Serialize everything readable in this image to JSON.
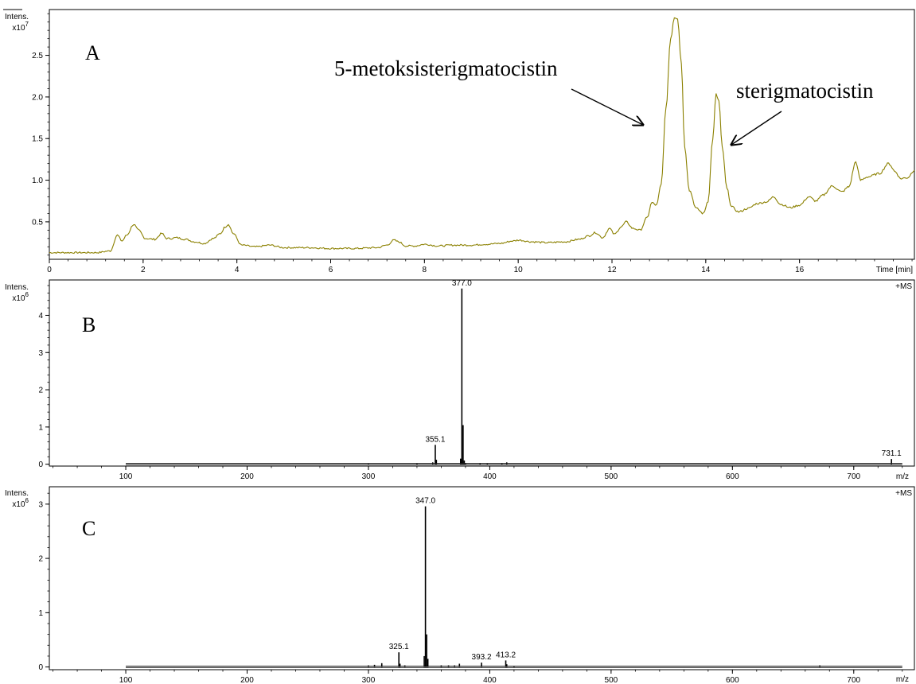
{
  "chart_data": [
    {
      "type": "line",
      "panel_label": "A",
      "y_axis_label": "Intens.",
      "y_axis_multiplier_base": "x10",
      "y_axis_multiplier_exp": "7",
      "x_axis_label": "Time [min]",
      "xlim": [
        0,
        18.45
      ],
      "ylim": [
        0.05,
        3.05
      ],
      "x_ticks": [
        "0",
        "2",
        "4",
        "6",
        "8",
        "10",
        "12",
        "14",
        "16"
      ],
      "y_ticks": [
        "0.5",
        "1.0",
        "1.5",
        "2.0",
        "2.5"
      ],
      "line_color": "#8b8000",
      "annotations": [
        {
          "text": "5-metoksisterigmatocistin",
          "x": 13.4,
          "y": 2.96
        },
        {
          "text": "sterigmatocistin",
          "x": 14.25,
          "y": 2.03
        }
      ],
      "series": [
        {
          "x": [
            0,
            0.5,
            1.0,
            1.3,
            1.45,
            1.55,
            1.65,
            1.8,
            1.9,
            2.05,
            2.25,
            2.4,
            2.5,
            2.6,
            2.7,
            2.9,
            3.1,
            3.3,
            3.5,
            3.65,
            3.75,
            3.82,
            3.92,
            4.1,
            4.4,
            4.7,
            5.0,
            5.5,
            6.0,
            6.5,
            7.0,
            7.2,
            7.35,
            7.45,
            7.6,
            7.8,
            8.0,
            8.3,
            8.6,
            9.0,
            9.3,
            9.6,
            9.9,
            10.0,
            10.3,
            10.6,
            11.0,
            11.3,
            11.5,
            11.65,
            11.8,
            11.95,
            12.05,
            12.2,
            12.3,
            12.45,
            12.6,
            12.75,
            12.85,
            12.95,
            13.05,
            13.15,
            13.25,
            13.33,
            13.4,
            13.48,
            13.55,
            13.65,
            13.8,
            13.95,
            14.05,
            14.15,
            14.22,
            14.28,
            14.35,
            14.45,
            14.55,
            14.7,
            14.9,
            15.1,
            15.3,
            15.45,
            15.6,
            15.8,
            16.0,
            16.2,
            16.35,
            16.5,
            16.7,
            16.9,
            17.05,
            17.2,
            17.3,
            17.45,
            17.7,
            17.9,
            18.05,
            18.15,
            18.3,
            18.45
          ],
          "y": [
            0.13,
            0.13,
            0.13,
            0.15,
            0.34,
            0.27,
            0.34,
            0.47,
            0.4,
            0.3,
            0.29,
            0.36,
            0.3,
            0.3,
            0.31,
            0.29,
            0.26,
            0.24,
            0.3,
            0.36,
            0.44,
            0.47,
            0.36,
            0.22,
            0.2,
            0.22,
            0.19,
            0.19,
            0.18,
            0.18,
            0.19,
            0.22,
            0.28,
            0.26,
            0.21,
            0.21,
            0.23,
            0.21,
            0.22,
            0.22,
            0.23,
            0.24,
            0.27,
            0.28,
            0.26,
            0.25,
            0.26,
            0.29,
            0.33,
            0.37,
            0.31,
            0.42,
            0.35,
            0.44,
            0.5,
            0.42,
            0.4,
            0.55,
            0.73,
            0.7,
            0.95,
            1.85,
            2.7,
            2.96,
            2.95,
            2.4,
            1.4,
            0.88,
            0.66,
            0.6,
            0.75,
            1.5,
            2.03,
            1.95,
            1.4,
            0.9,
            0.68,
            0.62,
            0.66,
            0.72,
            0.74,
            0.8,
            0.71,
            0.67,
            0.7,
            0.8,
            0.75,
            0.82,
            0.93,
            0.86,
            0.92,
            1.22,
            1.0,
            1.04,
            1.08,
            1.2,
            1.1,
            1.02,
            1.03,
            1.12
          ]
        }
      ]
    },
    {
      "type": "bar",
      "panel_label": "B",
      "y_axis_label": "Intens.",
      "y_axis_multiplier_base": "x10",
      "y_axis_multiplier_exp": "6",
      "x_axis_label": "m/z",
      "corner_label": "+MS",
      "xlim": [
        37,
        750
      ],
      "ylim": [
        -0.05,
        4.95
      ],
      "x_ticks": [
        "100",
        "200",
        "300",
        "400",
        "500",
        "600",
        "700"
      ],
      "y_ticks": [
        "0",
        "1",
        "2",
        "3",
        "4"
      ],
      "baseline_range": [
        100,
        740
      ],
      "peaks_mz": [
        300,
        340,
        353,
        355.1,
        356,
        376,
        377.0,
        378,
        379,
        380,
        392,
        398,
        410,
        414,
        731.1
      ],
      "peaks_intensity": [
        0.01,
        0.02,
        0.05,
        0.52,
        0.12,
        0.15,
        4.72,
        1.05,
        0.1,
        0.03,
        0.03,
        0.02,
        0.03,
        0.05,
        0.14
      ],
      "peak_labels": [
        {
          "mz": 355.1,
          "text": "355.1"
        },
        {
          "mz": 377.0,
          "text": "377.0"
        },
        {
          "mz": 731.1,
          "text": "731.1"
        }
      ]
    },
    {
      "type": "bar",
      "panel_label": "C",
      "y_axis_label": "Intens.",
      "y_axis_multiplier_base": "x10",
      "y_axis_multiplier_exp": "6",
      "x_axis_label": "m/z",
      "corner_label": "+MS",
      "xlim": [
        37,
        750
      ],
      "ylim": [
        -0.05,
        3.32
      ],
      "x_ticks": [
        "100",
        "200",
        "300",
        "400",
        "500",
        "600",
        "700"
      ],
      "y_ticks": [
        "0",
        "1",
        "2",
        "3"
      ],
      "baseline_range": [
        100,
        740
      ],
      "peaks_mz": [
        300,
        305,
        311,
        325.1,
        326,
        330,
        346,
        347.0,
        348,
        349,
        360,
        366,
        371,
        375,
        393.2,
        413.2,
        414,
        420,
        672
      ],
      "peaks_intensity": [
        0.03,
        0.04,
        0.07,
        0.27,
        0.06,
        0.03,
        0.2,
        2.96,
        0.6,
        0.15,
        0.03,
        0.03,
        0.03,
        0.06,
        0.08,
        0.12,
        0.05,
        0.02,
        0.03
      ],
      "peak_labels": [
        {
          "mz": 325.1,
          "text": "325.1"
        },
        {
          "mz": 347.0,
          "text": "347.0"
        },
        {
          "mz": 393.2,
          "text": "393.2"
        },
        {
          "mz": 413.2,
          "text": "413.2"
        }
      ]
    }
  ]
}
